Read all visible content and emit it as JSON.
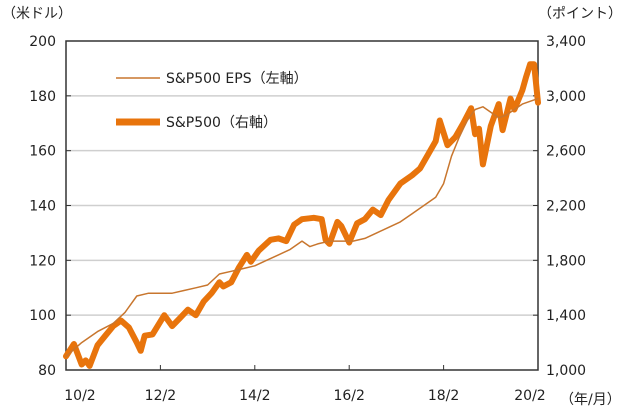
{
  "chart_data": {
    "type": "line",
    "left_axis_unit": "（米ドル）",
    "right_axis_unit": "（ポイント）",
    "x_axis_unit": "（年/月）",
    "x_tick_labels": [
      "10/2",
      "12/2",
      "14/2",
      "16/2",
      "18/2",
      "20/2"
    ],
    "x_range": [
      "2010-02",
      "2020-02"
    ],
    "left_ylim": [
      80,
      200
    ],
    "left_ticks": [
      "80",
      "100",
      "120",
      "140",
      "160",
      "180",
      "200"
    ],
    "right_ylim": [
      1000,
      3400
    ],
    "right_ticks": [
      "1,000",
      "1,400",
      "1,800",
      "2,200",
      "2,600",
      "3,000",
      "3,400"
    ],
    "grid": true,
    "legend_position": "top-left",
    "series": [
      {
        "name": "S&P500 EPS（左軸）",
        "axis": "left",
        "color": "#C8762E",
        "points": [
          [
            "2010-02",
            85
          ],
          [
            "2010-06",
            90
          ],
          [
            "2010-10",
            94
          ],
          [
            "2011-02",
            97
          ],
          [
            "2011-05",
            101
          ],
          [
            "2011-08",
            107
          ],
          [
            "2011-11",
            108
          ],
          [
            "2012-02",
            108
          ],
          [
            "2012-05",
            108
          ],
          [
            "2012-08",
            109
          ],
          [
            "2012-11",
            110
          ],
          [
            "2013-02",
            111
          ],
          [
            "2013-05",
            115
          ],
          [
            "2013-08",
            116
          ],
          [
            "2013-11",
            117
          ],
          [
            "2014-02",
            118
          ],
          [
            "2014-05",
            120
          ],
          [
            "2014-08",
            122
          ],
          [
            "2014-11",
            124
          ],
          [
            "2015-02",
            127
          ],
          [
            "2015-04",
            125
          ],
          [
            "2015-06",
            126
          ],
          [
            "2015-09",
            127
          ],
          [
            "2015-12",
            127
          ],
          [
            "2016-03",
            127
          ],
          [
            "2016-06",
            128
          ],
          [
            "2016-09",
            130
          ],
          [
            "2016-12",
            132
          ],
          [
            "2017-03",
            134
          ],
          [
            "2017-06",
            137
          ],
          [
            "2017-09",
            140
          ],
          [
            "2017-12",
            143
          ],
          [
            "2018-02",
            148
          ],
          [
            "2018-04",
            158
          ],
          [
            "2018-06",
            165
          ],
          [
            "2018-08",
            171
          ],
          [
            "2018-10",
            175
          ],
          [
            "2018-12",
            176
          ],
          [
            "2019-02",
            174
          ],
          [
            "2019-04",
            172
          ],
          [
            "2019-06",
            173
          ],
          [
            "2019-08",
            175
          ],
          [
            "2019-10",
            177
          ],
          [
            "2019-12",
            178
          ],
          [
            "2020-02",
            179
          ]
        ]
      },
      {
        "name": "S&P500（右軸）",
        "axis": "right",
        "color": "#E8740C",
        "points": [
          [
            "2010-02",
            1100
          ],
          [
            "2010-04",
            1190
          ],
          [
            "2010-06",
            1040
          ],
          [
            "2010-07",
            1070
          ],
          [
            "2010-08",
            1030
          ],
          [
            "2010-10",
            1180
          ],
          [
            "2010-12",
            1250
          ],
          [
            "2011-02",
            1320
          ],
          [
            "2011-04",
            1360
          ],
          [
            "2011-06",
            1310
          ],
          [
            "2011-08",
            1200
          ],
          [
            "2011-09",
            1140
          ],
          [
            "2011-10",
            1250
          ],
          [
            "2011-12",
            1260
          ],
          [
            "2012-03",
            1400
          ],
          [
            "2012-05",
            1320
          ],
          [
            "2012-07",
            1380
          ],
          [
            "2012-09",
            1440
          ],
          [
            "2012-11",
            1400
          ],
          [
            "2013-01",
            1500
          ],
          [
            "2013-03",
            1560
          ],
          [
            "2013-05",
            1640
          ],
          [
            "2013-06",
            1610
          ],
          [
            "2013-08",
            1640
          ],
          [
            "2013-10",
            1750
          ],
          [
            "2013-12",
            1840
          ],
          [
            "2014-01",
            1790
          ],
          [
            "2014-03",
            1870
          ],
          [
            "2014-06",
            1950
          ],
          [
            "2014-08",
            1960
          ],
          [
            "2014-10",
            1940
          ],
          [
            "2014-12",
            2060
          ],
          [
            "2015-02",
            2100
          ],
          [
            "2015-05",
            2110
          ],
          [
            "2015-07",
            2100
          ],
          [
            "2015-08",
            1950
          ],
          [
            "2015-09",
            1920
          ],
          [
            "2015-11",
            2080
          ],
          [
            "2015-12",
            2050
          ],
          [
            "2016-02",
            1930
          ],
          [
            "2016-04",
            2070
          ],
          [
            "2016-06",
            2100
          ],
          [
            "2016-08",
            2170
          ],
          [
            "2016-10",
            2130
          ],
          [
            "2016-12",
            2240
          ],
          [
            "2017-03",
            2360
          ],
          [
            "2017-06",
            2420
          ],
          [
            "2017-08",
            2470
          ],
          [
            "2017-10",
            2570
          ],
          [
            "2017-12",
            2670
          ],
          [
            "2018-01",
            2820
          ],
          [
            "2018-03",
            2640
          ],
          [
            "2018-05",
            2700
          ],
          [
            "2018-07",
            2800
          ],
          [
            "2018-09",
            2910
          ],
          [
            "2018-10",
            2720
          ],
          [
            "2018-11",
            2760
          ],
          [
            "2018-12",
            2500
          ],
          [
            "2019-02",
            2780
          ],
          [
            "2019-04",
            2940
          ],
          [
            "2019-05",
            2750
          ],
          [
            "2019-07",
            2980
          ],
          [
            "2019-08",
            2900
          ],
          [
            "2019-10",
            3040
          ],
          [
            "2019-11",
            3140
          ],
          [
            "2019-12",
            3230
          ],
          [
            "2020-01",
            3230
          ],
          [
            "2020-02",
            2950
          ]
        ]
      }
    ]
  }
}
